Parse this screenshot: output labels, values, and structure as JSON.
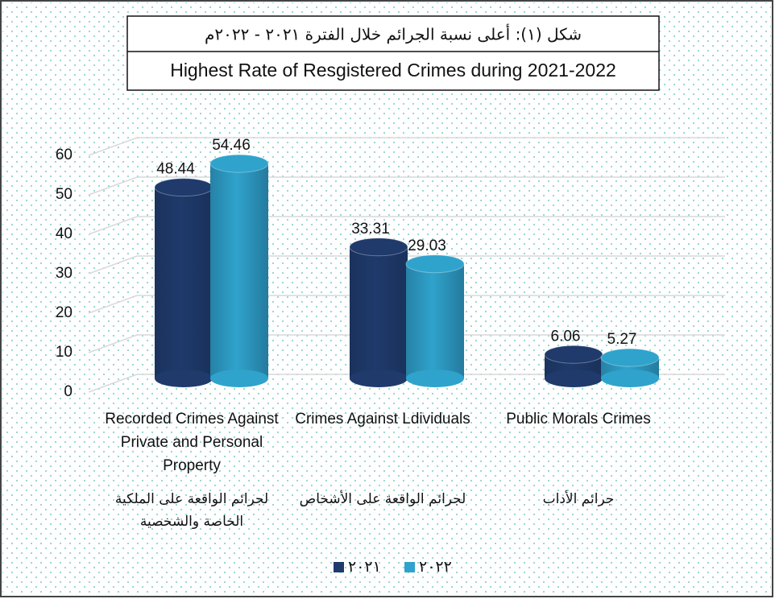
{
  "chart_data": {
    "type": "bar3d",
    "title_ar": "شكل (١): أعلى نسبة الجرائم  خلال الفترة ٢٠٢١ - ٢٠٢٢م",
    "title": "Highest Rate of Resgistered Crimes during 2021-2022",
    "categories": [
      "Recorded Crimes Against Private and Personal Property",
      "Crimes Against Ldividuals",
      "Public Morals Crimes"
    ],
    "categories_ar": [
      "لجرائم الواقعة على الملكية الخاصة والشخصية",
      "لجرائم الواقعة على الأشخاص",
      "جرائم الأداب"
    ],
    "series": [
      {
        "name": "٢٠٢١",
        "color": "#1f3a6b",
        "values": [
          48.44,
          33.31,
          6.06
        ]
      },
      {
        "name": "٢٠٢٢",
        "color": "#2fa3cc",
        "values": [
          54.46,
          29.03,
          5.27
        ]
      }
    ],
    "ylim": [
      0,
      60
    ],
    "yticks": [
      0,
      10,
      20,
      30,
      40,
      50,
      60
    ],
    "grid": true
  }
}
